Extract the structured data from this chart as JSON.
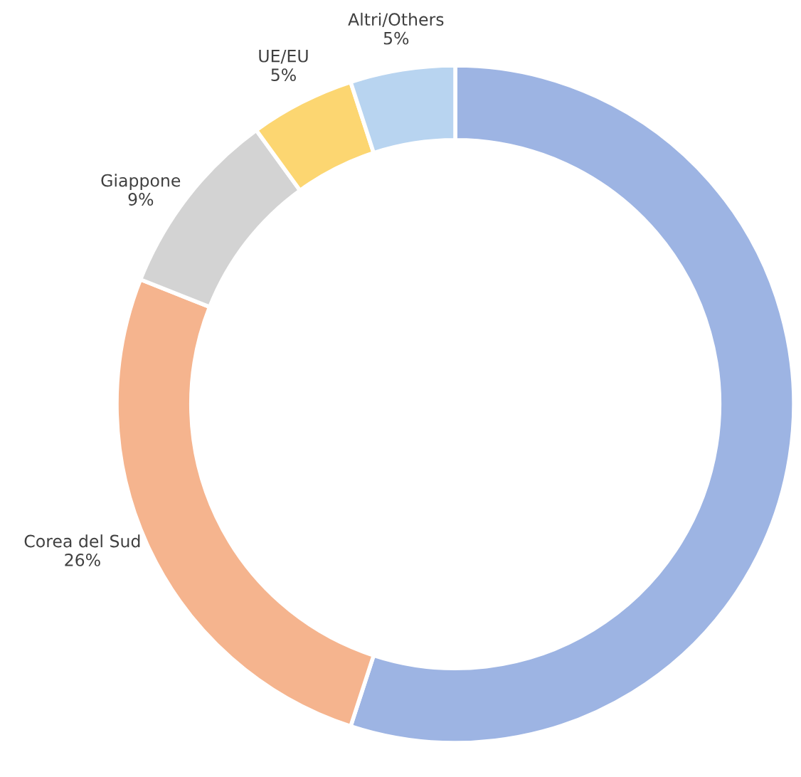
{
  "chart_data": {
    "type": "donut",
    "categories": [
      null,
      "Corea del Sud",
      "Giappone",
      "UE/EU",
      "Altri/Others"
    ],
    "values": [
      55,
      26,
      9,
      5,
      5
    ],
    "value_labels": [
      null,
      "26%",
      "9%",
      "5%",
      "5%"
    ],
    "colors": [
      "#9db4e3",
      "#f5b48e",
      "#d3d3d3",
      "#fcd671",
      "#b8d4f0"
    ],
    "legend": false
  }
}
